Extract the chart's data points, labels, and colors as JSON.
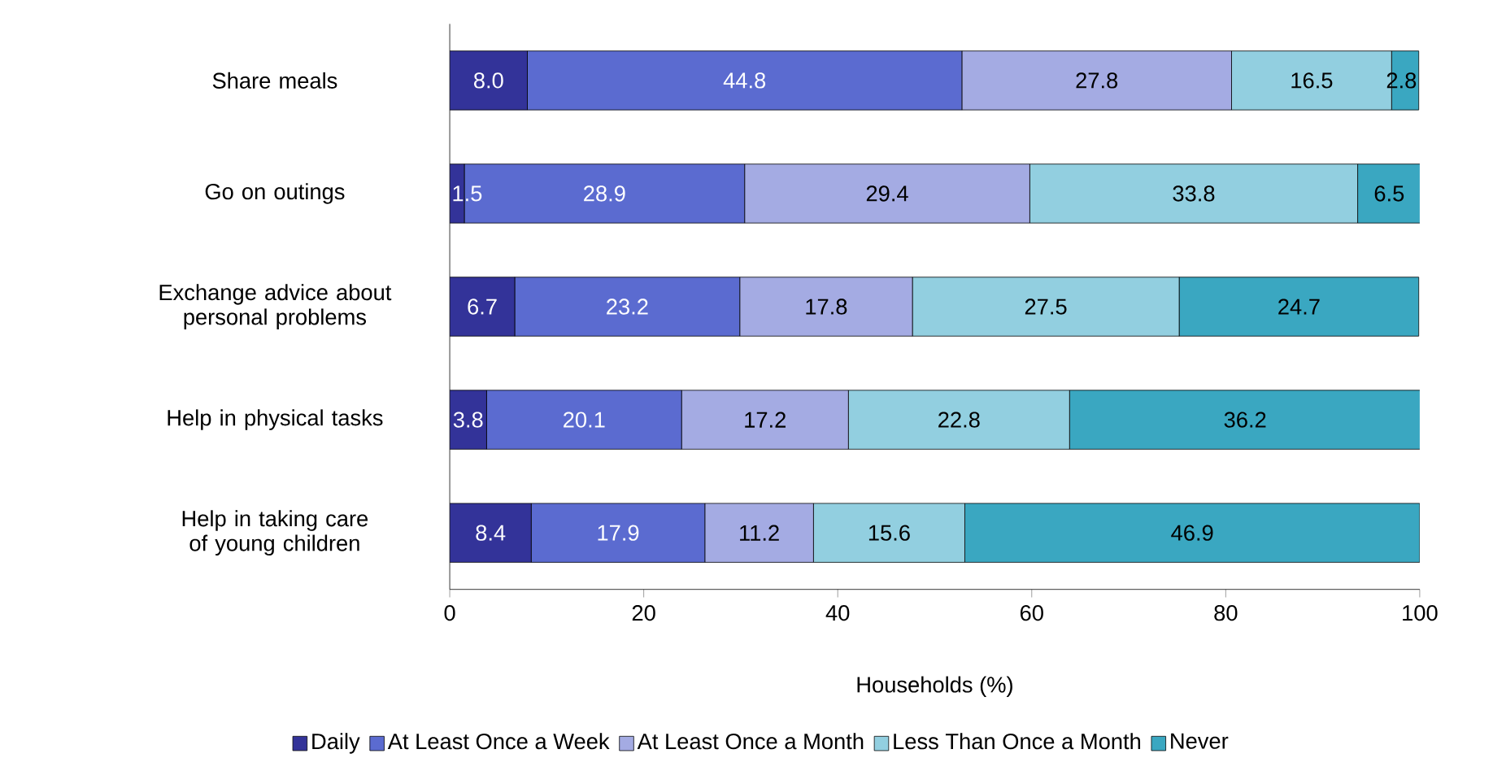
{
  "chart_data": {
    "type": "bar",
    "orientation": "horizontal",
    "stacked": true,
    "data_labels": true,
    "legend": "bottom",
    "xlabel": "Households (%)",
    "xlim": [
      0,
      100
    ],
    "xticks": [
      0,
      20,
      40,
      60,
      80,
      100
    ],
    "categories": [
      "Share meals",
      "Go on outings",
      "Exchange advice about personal problems",
      "Help in physical tasks",
      "Help in taking care of young children"
    ],
    "series": [
      {
        "name": "Daily",
        "color": "#333399",
        "values": [
          8.0,
          1.5,
          6.7,
          3.8,
          8.4
        ],
        "value_labels": [
          "8.0",
          "1.5",
          "6.7",
          "3.8",
          "8.4"
        ]
      },
      {
        "name": "At Least Once a Week",
        "color": "#5b6bd0",
        "values": [
          44.8,
          28.9,
          23.2,
          20.1,
          17.9
        ],
        "value_labels": [
          "44.8",
          "28.9",
          "23.2",
          "20.1",
          "17.9"
        ]
      },
      {
        "name": "At Least Once a Month",
        "color": "#a4abe3",
        "values": [
          27.8,
          29.4,
          17.8,
          17.2,
          11.2
        ],
        "value_labels": [
          "27.8",
          "29.4",
          "17.8",
          "17.2",
          "11.2"
        ]
      },
      {
        "name": "Less Than Once a Month",
        "color": "#92cfe0",
        "values": [
          16.5,
          33.8,
          27.5,
          22.8,
          15.6
        ],
        "value_labels": [
          "16.5",
          "33.8",
          "27.5",
          "22.8",
          "15.6"
        ]
      },
      {
        "name": "Never",
        "color": "#3aa7c1",
        "values": [
          2.8,
          6.5,
          24.7,
          36.2,
          46.9
        ],
        "value_labels": [
          "2.8",
          "6.5",
          "24.7",
          "36.2",
          "46.9"
        ]
      }
    ]
  }
}
